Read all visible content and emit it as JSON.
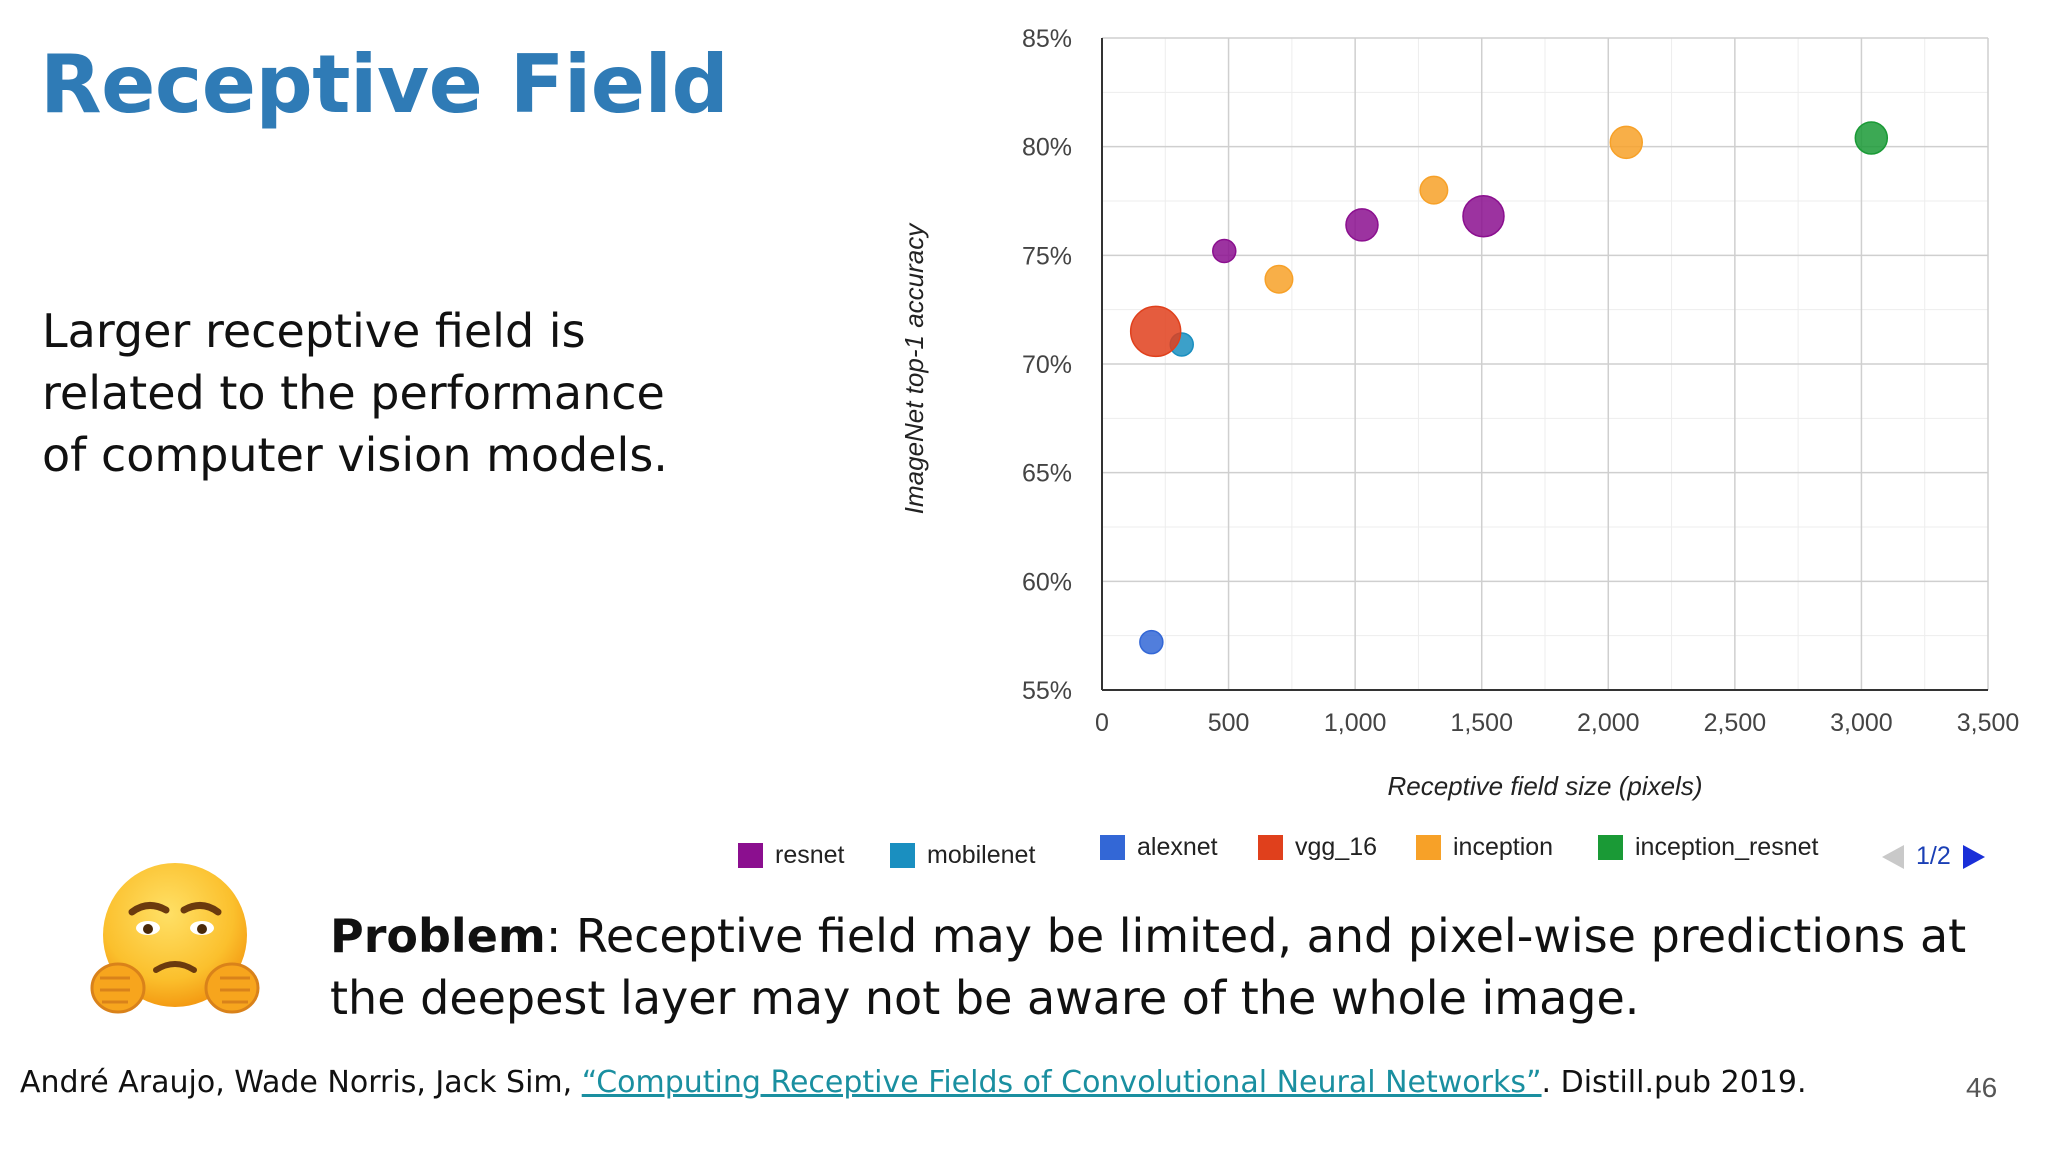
{
  "slide": {
    "title": "Receptive Field",
    "body_lines": [
      "Larger receptive field is",
      "related to the performance",
      "of computer vision models."
    ],
    "problem_label": "Problem",
    "problem_text": ": Receptive field may be limited, and pixel-wise predictions at the deepest layer may not be aware of the whole image.",
    "citation_authors": "André Araujo, Wade Norris, Jack Sim, ",
    "citation_link": "“Computing Receptive Fields of Convolutional Neural Networks”",
    "citation_tail": ". Distill.pub 2019.",
    "page_number": "46"
  },
  "legend": {
    "pager": "1/2"
  },
  "chart_data": {
    "type": "scatter",
    "title": "",
    "xlabel": "Receptive field size (pixels)",
    "ylabel": "ImageNet top-1 accuracy",
    "xlim": [
      0,
      3500
    ],
    "ylim": [
      55,
      85
    ],
    "xticks": [
      0,
      500,
      1000,
      1500,
      2000,
      2500,
      3000,
      3500
    ],
    "xtick_labels": [
      "0",
      "500",
      "1,000",
      "1,500",
      "2,000",
      "2,500",
      "3,000",
      "3,500"
    ],
    "yticks": [
      55,
      60,
      65,
      70,
      75,
      80,
      85
    ],
    "ytick_labels": [
      "55%",
      "60%",
      "65%",
      "70%",
      "75%",
      "80%",
      "85%"
    ],
    "grid": true,
    "legend_position": "bottom",
    "series": [
      {
        "name": "resnet",
        "color": "#8b0f8f",
        "points": [
          {
            "x": 483,
            "y": 75.2,
            "size": 1
          },
          {
            "x": 1027,
            "y": 76.4,
            "size": 2
          },
          {
            "x": 1507,
            "y": 76.8,
            "size": 3
          }
        ]
      },
      {
        "name": "mobilenet",
        "color": "#1a8fc0",
        "points": [
          {
            "x": 315,
            "y": 70.9,
            "size": 1
          }
        ]
      },
      {
        "name": "alexnet",
        "color": "#3367d6",
        "points": [
          {
            "x": 195,
            "y": 57.2,
            "size": 1
          }
        ]
      },
      {
        "name": "vgg_16",
        "color": "#e0401c",
        "points": [
          {
            "x": 212,
            "y": 71.5,
            "size": 4
          }
        ]
      },
      {
        "name": "inception",
        "color": "#f7a128",
        "points": [
          {
            "x": 699,
            "y": 73.9,
            "size": 1.5
          },
          {
            "x": 1311,
            "y": 78.0,
            "size": 1.5
          },
          {
            "x": 2071,
            "y": 80.2,
            "size": 2
          }
        ]
      },
      {
        "name": "inception_resnet",
        "color": "#1a9a36",
        "points": [
          {
            "x": 3039,
            "y": 80.4,
            "size": 2
          }
        ]
      }
    ]
  }
}
